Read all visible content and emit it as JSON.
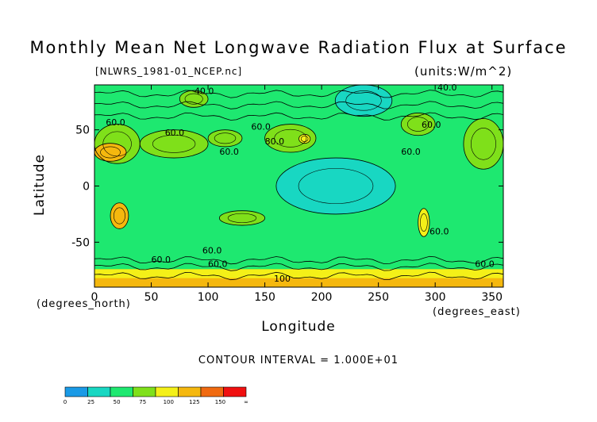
{
  "chart_data": {
    "type": "heatmap",
    "title": "Monthly Mean Net Longwave Radiation Flux at Surface",
    "subtitle": "[NLWRS_1981-01_NCEP.nc]",
    "units": "(units:W/m^2)",
    "xlabel": "Longitude",
    "ylabel": "Latitude",
    "x_unit_label": "(degrees_east)",
    "y_unit_label": "(degrees_north)",
    "xlim": [
      0,
      360
    ],
    "ylim": [
      -90,
      90
    ],
    "x_ticks": [
      0,
      50,
      100,
      150,
      200,
      250,
      300,
      350
    ],
    "y_ticks": [
      50,
      0,
      -50
    ],
    "contour_interval": "CONTOUR INTERVAL = 1.000E+01",
    "colorbar": {
      "colors": [
        "#1a9ae6",
        "#18d7c2",
        "#1ee870",
        "#7fe01a",
        "#f4f018",
        "#f5b80e",
        "#f06a10",
        "#f01010"
      ],
      "tick_labels": [
        "0",
        "25",
        "50",
        "75",
        "100",
        "125",
        "150",
        "∞"
      ]
    },
    "contour_labels": [
      "40.0",
      "60.0",
      "60.0",
      "60.0",
      "60.0",
      "80.0",
      "60.0",
      "60.0",
      "60.0",
      "60.0",
      "60.0",
      "60.0",
      "60.0",
      "100",
      "40.0"
    ],
    "regions": [
      {
        "lon": [
          0,
          360
        ],
        "lat": [
          -90,
          90
        ],
        "value": 50
      },
      {
        "lon": [
          160,
          265
        ],
        "lat": [
          -25,
          25
        ],
        "value": 45
      },
      {
        "lon": [
          0,
          360
        ],
        "lat": [
          62,
          90
        ],
        "value": 65
      },
      {
        "lon": [
          0,
          360
        ],
        "lat": [
          -90,
          -66
        ],
        "value": 60
      },
      {
        "lon": [
          0,
          360
        ],
        "lat": [
          -88,
          -74
        ],
        "value": 105
      },
      {
        "lon": [
          0,
          360
        ],
        "lat": [
          -90,
          -82
        ],
        "value": 130
      },
      {
        "lon": [
          0,
          40
        ],
        "lat": [
          20,
          55
        ],
        "value": 90
      },
      {
        "lon": [
          0,
          28
        ],
        "lat": [
          22,
          38
        ],
        "value": 130
      },
      {
        "lon": [
          40,
          100
        ],
        "lat": [
          25,
          50
        ],
        "value": 85
      },
      {
        "lon": [
          100,
          130
        ],
        "lat": [
          35,
          50
        ],
        "value": 95
      },
      {
        "lon": [
          150,
          195
        ],
        "lat": [
          30,
          55
        ],
        "value": 90
      },
      {
        "lon": [
          180,
          190
        ],
        "lat": [
          38,
          46
        ],
        "value": 120
      },
      {
        "lon": [
          270,
          300
        ],
        "lat": [
          45,
          65
        ],
        "value": 85
      },
      {
        "lon": [
          325,
          360
        ],
        "lat": [
          15,
          60
        ],
        "value": 90
      },
      {
        "lon": [
          14,
          30
        ],
        "lat": [
          -38,
          -15
        ],
        "value": 140
      },
      {
        "lon": [
          110,
          150
        ],
        "lat": [
          -35,
          -22
        ],
        "value": 85
      },
      {
        "lon": [
          285,
          295
        ],
        "lat": [
          -45,
          -20
        ],
        "value": 110
      },
      {
        "lon": [
          212,
          262
        ],
        "lat": [
          62,
          90
        ],
        "value": 30
      },
      {
        "lon": [
          75,
          100
        ],
        "lat": [
          70,
          85
        ],
        "value": 85
      }
    ]
  }
}
